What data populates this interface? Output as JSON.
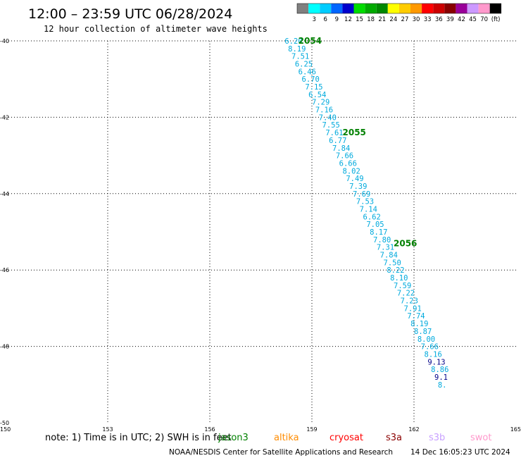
{
  "header": {
    "title": "12:00 – 23:59 UTC 06/28/2024",
    "subtitle": "12 hour collection of altimeter wave heights"
  },
  "legend": {
    "unit": "(ft)",
    "bins": [
      {
        "label": "",
        "color": "#808080"
      },
      {
        "label": "3",
        "color": "#00ffff"
      },
      {
        "label": "6",
        "color": "#00ccff"
      },
      {
        "label": "9",
        "color": "#0066ff"
      },
      {
        "label": "12",
        "color": "#0000cc"
      },
      {
        "label": "15",
        "color": "#00dd00"
      },
      {
        "label": "18",
        "color": "#00aa00"
      },
      {
        "label": "21",
        "color": "#008800"
      },
      {
        "label": "24",
        "color": "#ffff00"
      },
      {
        "label": "27",
        "color": "#ffcc00"
      },
      {
        "label": "30",
        "color": "#ff9900"
      },
      {
        "label": "33",
        "color": "#ff0000"
      },
      {
        "label": "36",
        "color": "#cc0000"
      },
      {
        "label": "39",
        "color": "#880000"
      },
      {
        "label": "42",
        "color": "#990099"
      },
      {
        "label": "45",
        "color": "#cc99ff"
      },
      {
        "label": "70",
        "color": "#ff99cc"
      },
      {
        "label": "",
        "color": "#000000"
      }
    ]
  },
  "chart_data": {
    "type": "scatter",
    "title": "12:00 – 23:59 UTC 06/28/2024",
    "subtitle": "12 hour collection of altimeter wave heights",
    "xlim": [
      150,
      165
    ],
    "ylim": [
      -50,
      -40
    ],
    "x_ticks": [
      "150",
      "153",
      "156",
      "159",
      "162",
      "165"
    ],
    "y_ticks": [
      "-40",
      "-42",
      "-44",
      "-46",
      "-48",
      "-50"
    ],
    "grid": true,
    "color_low": "#00aadd",
    "color_high": "#000088",
    "points": [
      {
        "x": 158.2,
        "y": -40.0,
        "v": "6.20"
      },
      {
        "x": 158.3,
        "y": -40.2,
        "v": "8.19"
      },
      {
        "x": 158.4,
        "y": -40.4,
        "v": "7.51"
      },
      {
        "x": 158.5,
        "y": -40.6,
        "v": "6.25"
      },
      {
        "x": 158.6,
        "y": -40.8,
        "v": "6.46"
      },
      {
        "x": 158.7,
        "y": -41.0,
        "v": "6.70"
      },
      {
        "x": 158.8,
        "y": -41.2,
        "v": "7.15"
      },
      {
        "x": 158.9,
        "y": -41.4,
        "v": "6.54"
      },
      {
        "x": 159.0,
        "y": -41.6,
        "v": "7.29"
      },
      {
        "x": 159.1,
        "y": -41.8,
        "v": "7.16"
      },
      {
        "x": 159.2,
        "y": -42.0,
        "v": "7.40"
      },
      {
        "x": 159.3,
        "y": -42.2,
        "v": "7.55"
      },
      {
        "x": 159.4,
        "y": -42.4,
        "v": "7.61"
      },
      {
        "x": 159.5,
        "y": -42.6,
        "v": "6.77"
      },
      {
        "x": 159.6,
        "y": -42.8,
        "v": "7.84"
      },
      {
        "x": 159.7,
        "y": -43.0,
        "v": "7.66"
      },
      {
        "x": 159.8,
        "y": -43.2,
        "v": "6.66"
      },
      {
        "x": 159.9,
        "y": -43.4,
        "v": "8.02"
      },
      {
        "x": 160.0,
        "y": -43.6,
        "v": "7.49"
      },
      {
        "x": 160.1,
        "y": -43.8,
        "v": "7.39"
      },
      {
        "x": 160.2,
        "y": -44.0,
        "v": "7.69"
      },
      {
        "x": 160.3,
        "y": -44.2,
        "v": "7.53"
      },
      {
        "x": 160.4,
        "y": -44.4,
        "v": "7.14"
      },
      {
        "x": 160.5,
        "y": -44.6,
        "v": "6.62"
      },
      {
        "x": 160.6,
        "y": -44.8,
        "v": "7.05"
      },
      {
        "x": 160.7,
        "y": -45.0,
        "v": "8.17"
      },
      {
        "x": 160.8,
        "y": -45.2,
        "v": "7.80"
      },
      {
        "x": 160.9,
        "y": -45.4,
        "v": "7.31"
      },
      {
        "x": 161.0,
        "y": -45.6,
        "v": "7.84"
      },
      {
        "x": 161.1,
        "y": -45.8,
        "v": "7.50"
      },
      {
        "x": 161.2,
        "y": -46.0,
        "v": "8.22"
      },
      {
        "x": 161.3,
        "y": -46.2,
        "v": "8.10"
      },
      {
        "x": 161.4,
        "y": -46.4,
        "v": "7.59"
      },
      {
        "x": 161.5,
        "y": -46.6,
        "v": "7.22"
      },
      {
        "x": 161.6,
        "y": -46.8,
        "v": "7.23"
      },
      {
        "x": 161.7,
        "y": -47.0,
        "v": "7.91"
      },
      {
        "x": 161.8,
        "y": -47.2,
        "v": "7.74"
      },
      {
        "x": 161.9,
        "y": -47.4,
        "v": "8.19"
      },
      {
        "x": 162.0,
        "y": -47.6,
        "v": "8.87"
      },
      {
        "x": 162.1,
        "y": -47.8,
        "v": "8.00"
      },
      {
        "x": 162.2,
        "y": -48.0,
        "v": "7.66"
      },
      {
        "x": 162.3,
        "y": -48.2,
        "v": "8.16"
      },
      {
        "x": 162.4,
        "y": -48.4,
        "v": "9.13"
      },
      {
        "x": 162.5,
        "y": -48.6,
        "v": "8.86"
      },
      {
        "x": 162.6,
        "y": -48.8,
        "v": "9.1"
      },
      {
        "x": 162.7,
        "y": -49.0,
        "v": "8."
      }
    ],
    "pass_labels": [
      {
        "text": "2054",
        "x": 158.6,
        "y": -40.0
      },
      {
        "text": "2055",
        "x": 159.9,
        "y": -42.4
      },
      {
        "text": "2056",
        "x": 161.4,
        "y": -45.3
      }
    ]
  },
  "footer": {
    "note": "note: 1) Time is in UTC; 2) SWH is in feet",
    "satellites": [
      {
        "name": "jason3",
        "color": "#008000"
      },
      {
        "name": "altika",
        "color": "#ff8c00"
      },
      {
        "name": "cryosat",
        "color": "#ff0000"
      },
      {
        "name": "s3a",
        "color": "#8b0000"
      },
      {
        "name": "s3b",
        "color": "#c8a0ff"
      },
      {
        "name": "swot",
        "color": "#ff99cc"
      }
    ],
    "credit": "NOAA/NESDIS Center for Satellite Applications and Research",
    "timestamp": "14 Dec 16:05:23 UTC 2024"
  }
}
